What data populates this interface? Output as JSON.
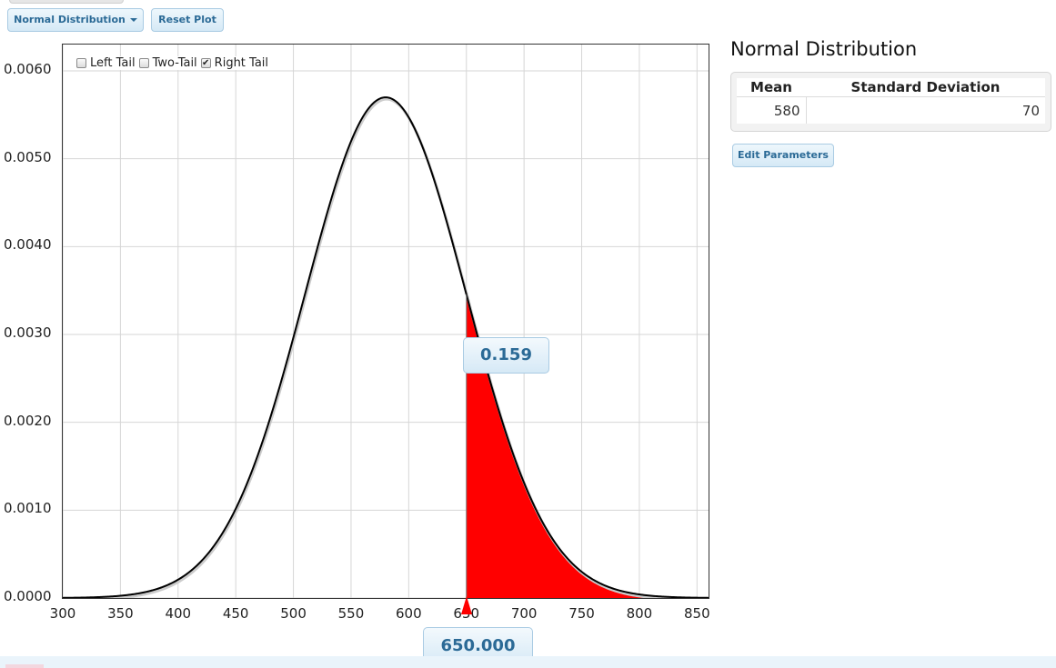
{
  "toolbar": {
    "distribution_label": "Normal Distribution",
    "reset_label": "Reset Plot"
  },
  "tail_options": [
    {
      "label": "Left Tail",
      "checked": false
    },
    {
      "label": "Two-Tail",
      "checked": false
    },
    {
      "label": "Right Tail",
      "checked": true
    }
  ],
  "panel": {
    "title": "Normal Distribution",
    "headers": [
      "Mean",
      "Standard Deviation"
    ],
    "values": [
      "580",
      "70"
    ],
    "edit_label": "Edit Parameters"
  },
  "readouts": {
    "probability": "0.159",
    "x_value": "650.000"
  },
  "colors": {
    "shaded": "#ff0000",
    "curve": "#000000",
    "accent": "#2b6a96"
  },
  "chart_data": {
    "type": "area",
    "distribution": "normal",
    "mean": 580,
    "sd": 70,
    "shaded_from": 650,
    "shaded_to": 860,
    "xlim": [
      300,
      860
    ],
    "ylim": [
      0,
      0.0063
    ],
    "x_ticks": [
      "300",
      "350",
      "400",
      "450",
      "500",
      "550",
      "600",
      "650",
      "700",
      "750",
      "800",
      "850"
    ],
    "y_ticks": [
      "0.0000",
      "0.0010",
      "0.0020",
      "0.0030",
      "0.0040",
      "0.0050",
      "0.0060"
    ],
    "grid": true
  }
}
